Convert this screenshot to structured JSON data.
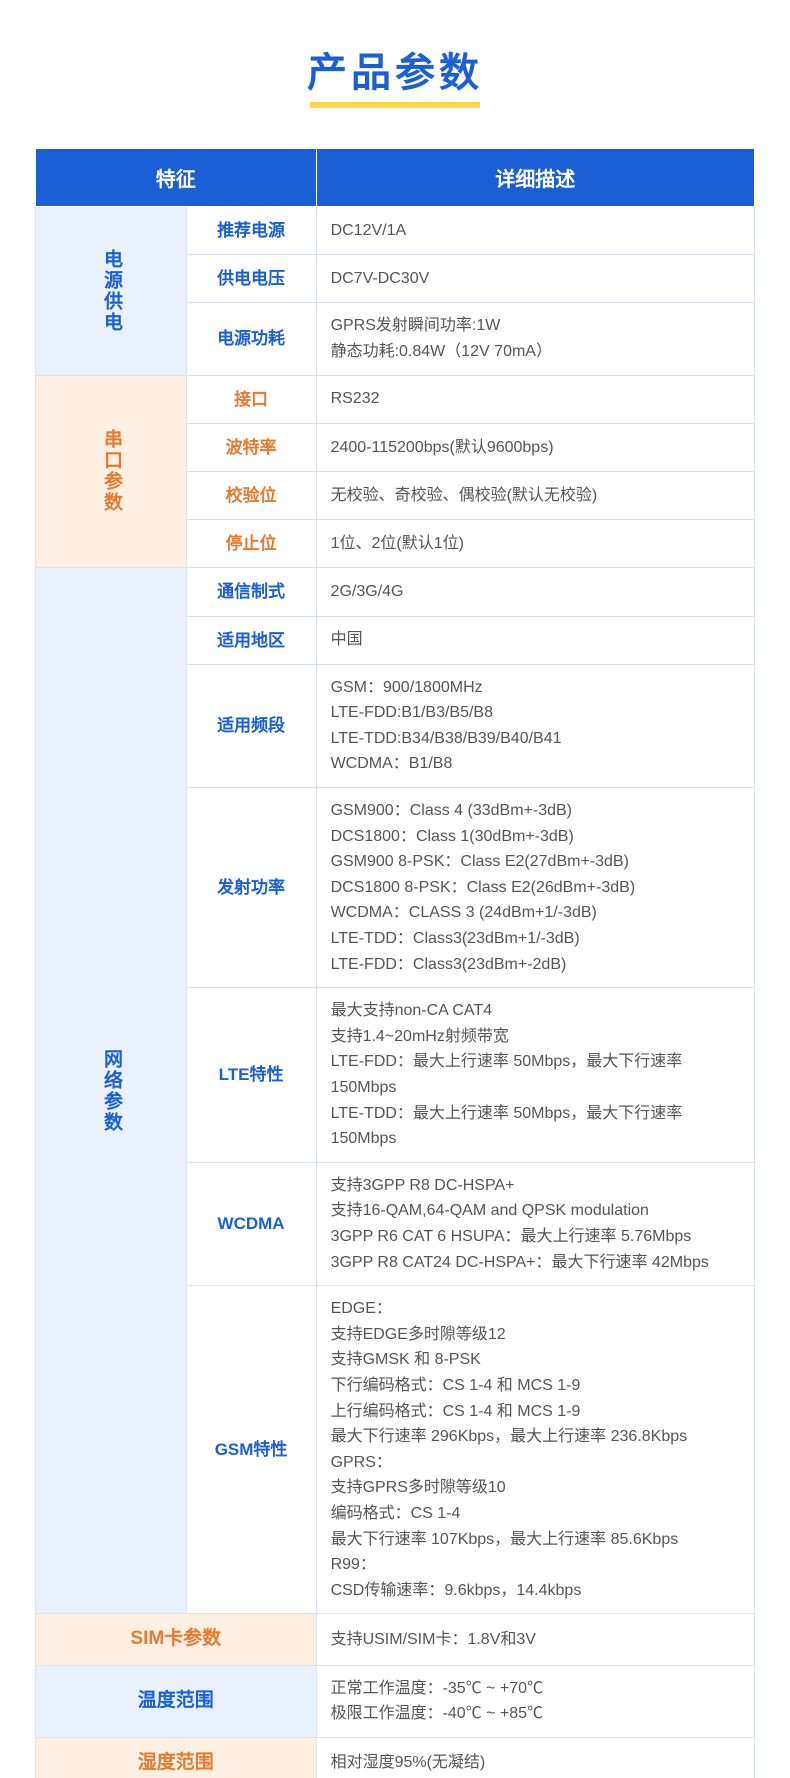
{
  "page_title": "产品参数",
  "header": {
    "col1": "特征",
    "col2": "详细描述"
  },
  "groups": [
    {
      "name": "电源供电",
      "style": "blue",
      "rows": [
        {
          "sub": "推荐电源",
          "val": "DC12V/1A"
        },
        {
          "sub": "供电电压",
          "val": "DC7V-DC30V"
        },
        {
          "sub": "电源功耗",
          "val": "GPRS发射瞬间功率:1W\n静态功耗:0.84W（12V 70mA）"
        }
      ]
    },
    {
      "name": "串口参数",
      "style": "orange",
      "rows": [
        {
          "sub": "接口",
          "val": "RS232"
        },
        {
          "sub": "波特率",
          "val": "2400-115200bps(默认9600bps)"
        },
        {
          "sub": "校验位",
          "val": "无校验、奇校验、偶校验(默认无校验)"
        },
        {
          "sub": "停止位",
          "val": "1位、2位(默认1位)"
        }
      ]
    },
    {
      "name": "网络参数",
      "style": "blue",
      "rows": [
        {
          "sub": "通信制式",
          "val": "2G/3G/4G"
        },
        {
          "sub": "适用地区",
          "val": "中国"
        },
        {
          "sub": "适用频段",
          "val": "GSM：900/1800MHz\nLTE-FDD:B1/B3/B5/B8\nLTE-TDD:B34/B38/B39/B40/B41\nWCDMA：B1/B8"
        },
        {
          "sub": "发射功率",
          "val": "GSM900：Class 4 (33dBm+-3dB)\nDCS1800：Class 1(30dBm+-3dB)\nGSM900 8-PSK：Class E2(27dBm+-3dB)\nDCS1800 8-PSK：Class E2(26dBm+-3dB)\nWCDMA：CLASS 3 (24dBm+1/-3dB)\nLTE-TDD：Class3(23dBm+1/-3dB)\nLTE-FDD：Class3(23dBm+-2dB)"
        },
        {
          "sub": "LTE特性",
          "val": "最大支持non-CA CAT4\n支持1.4~20mHz射频带宽\nLTE-FDD：最大上行速率 50Mbps，最大下行速率 150Mbps\nLTE-TDD：最大上行速率 50Mbps，最大下行速率 150Mbps"
        },
        {
          "sub": "WCDMA",
          "val": "支持3GPP R8 DC-HSPA+\n支持16-QAM,64-QAM and QPSK modulation\n3GPP R6 CAT 6 HSUPA：最大上行速率 5.76Mbps\n3GPP R8 CAT24 DC-HSPA+：最大下行速率 42Mbps"
        },
        {
          "sub": "GSM特性",
          "val": "EDGE：\n支持EDGE多时隙等级12\n支持GMSK 和 8-PSK\n下行编码格式：CS 1-4 和 MCS 1-9\n上行编码格式：CS 1-4 和 MCS 1-9\n最大下行速率 296Kbps，最大上行速率 236.8Kbps\nGPRS：\n支持GPRS多时隙等级10\n编码格式：CS 1-4\n最大下行速率 107Kbps，最大上行速率 85.6Kbps\nR99：\nCSD传输速率：9.6kbps，14.4kbps"
        }
      ]
    }
  ],
  "single_rows": [
    {
      "name": "SIM卡参数",
      "style": "orange",
      "val": "支持USIM/SIM卡：1.8V和3V"
    },
    {
      "name": "温度范围",
      "style": "blue",
      "val": "正常工作温度：-35℃ ~ +70℃\n极限工作温度：-40℃ ~ +85℃"
    },
    {
      "name": "湿度范围",
      "style": "orange",
      "val": "相对湿度95%(无凝结)"
    }
  ],
  "colors": {
    "brand_blue": "#1a5fd6",
    "accent_yellow": "#ffd54a",
    "blue_bg": "#e8f1fc",
    "orange_bg": "#fdf0e3",
    "orange_txt": "#e67a2e",
    "border": "#d9e3f0",
    "text": "#555555"
  }
}
